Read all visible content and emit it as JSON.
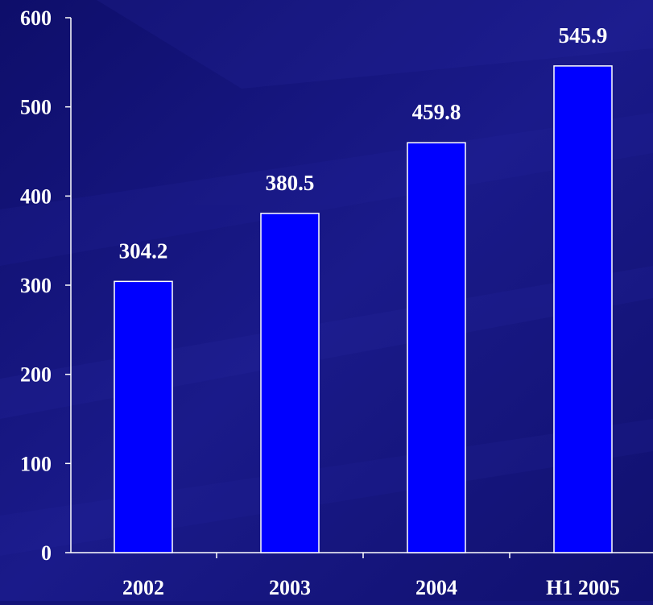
{
  "chart_data": {
    "type": "bar",
    "categories": [
      "2002",
      "2003",
      "2004",
      "H1 2005"
    ],
    "values": [
      304.2,
      380.5,
      459.8,
      545.9
    ],
    "data_labels": [
      "304.2",
      "380.5",
      "459.8",
      "545.9"
    ],
    "title": "",
    "xlabel": "",
    "ylabel": "",
    "ylim": [
      0,
      600
    ],
    "yticks": [
      0,
      100,
      200,
      300,
      400,
      500,
      600
    ],
    "ytick_labels": [
      "0",
      "100",
      "200",
      "300",
      "400",
      "500",
      "600"
    ],
    "grid": false,
    "legend": "none",
    "colors": {
      "background": "#14147a",
      "bar_fill": "#0000ff",
      "bar_stroke": "#ffffff",
      "axis": "#ffffff",
      "text": "#ffffff"
    }
  }
}
